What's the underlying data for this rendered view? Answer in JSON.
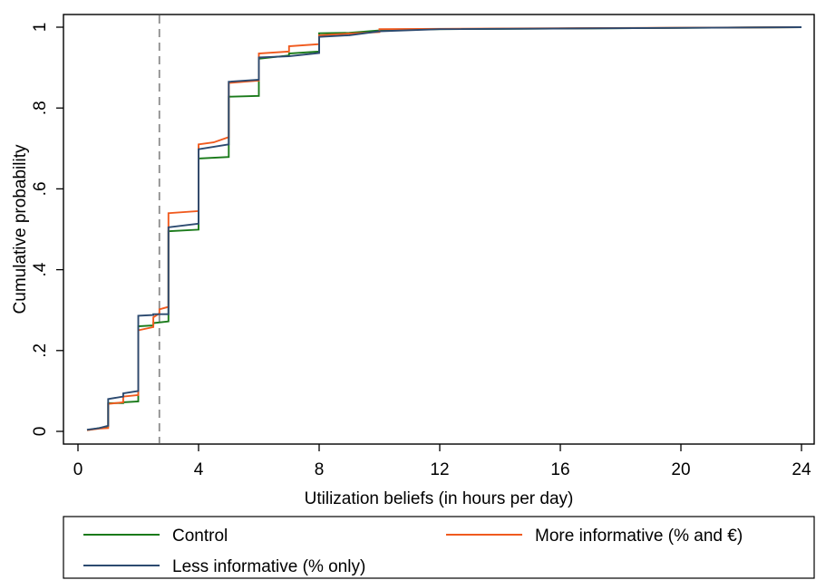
{
  "chart_data": {
    "type": "line",
    "step": true,
    "xlabel": "Utilization beliefs (in hours per day)",
    "ylabel": "Cumulative probability",
    "xlim": [
      0,
      24
    ],
    "ylim": [
      0,
      1
    ],
    "xticks": [
      0,
      4,
      8,
      12,
      16,
      20,
      24
    ],
    "yticks": [
      0,
      0.2,
      0.4,
      0.6,
      0.8,
      1
    ],
    "xtick_labels": [
      "0",
      "4",
      "8",
      "12",
      "16",
      "20",
      "24"
    ],
    "ytick_labels": [
      "0",
      ".2",
      ".4",
      ".6",
      ".8",
      "1"
    ],
    "reference_line": {
      "x": 2.7,
      "style": "dashed",
      "color": "#8c8c8c"
    },
    "grid": false,
    "legend_position": "bottom",
    "series": [
      {
        "name": "Control",
        "color": "#1a7a1a",
        "points": [
          [
            0.3,
            0.003
          ],
          [
            0.7,
            0.008
          ],
          [
            1.0,
            0.012
          ],
          [
            1.0,
            0.07
          ],
          [
            1.5,
            0.07
          ],
          [
            1.5,
            0.072
          ],
          [
            2.0,
            0.074
          ],
          [
            2.0,
            0.26
          ],
          [
            2.5,
            0.262
          ],
          [
            2.5,
            0.268
          ],
          [
            3.0,
            0.272
          ],
          [
            3.0,
            0.495
          ],
          [
            4.0,
            0.499
          ],
          [
            4.0,
            0.675
          ],
          [
            5.0,
            0.679
          ],
          [
            5.0,
            0.828
          ],
          [
            6.0,
            0.83
          ],
          [
            6.0,
            0.922
          ],
          [
            7.0,
            0.93
          ],
          [
            7.0,
            0.935
          ],
          [
            8.0,
            0.94
          ],
          [
            8.0,
            0.985
          ],
          [
            9.0,
            0.986
          ],
          [
            10.0,
            0.992
          ],
          [
            11.0,
            0.994
          ],
          [
            12.0,
            0.995
          ],
          [
            24.0,
            1.0
          ]
        ]
      },
      {
        "name": "More informative (% and €)",
        "color": "#f05a1e",
        "points": [
          [
            0.3,
            0.003
          ],
          [
            0.7,
            0.007
          ],
          [
            1.0,
            0.008
          ],
          [
            1.0,
            0.068
          ],
          [
            1.5,
            0.072
          ],
          [
            1.5,
            0.086
          ],
          [
            2.0,
            0.09
          ],
          [
            2.0,
            0.25
          ],
          [
            2.5,
            0.258
          ],
          [
            2.5,
            0.282
          ],
          [
            2.7,
            0.292
          ],
          [
            2.7,
            0.302
          ],
          [
            3.0,
            0.308
          ],
          [
            3.0,
            0.54
          ],
          [
            4.0,
            0.545
          ],
          [
            4.0,
            0.71
          ],
          [
            4.5,
            0.715
          ],
          [
            5.0,
            0.728
          ],
          [
            5.0,
            0.862
          ],
          [
            6.0,
            0.868
          ],
          [
            6.0,
            0.935
          ],
          [
            7.0,
            0.94
          ],
          [
            7.0,
            0.953
          ],
          [
            8.0,
            0.958
          ],
          [
            8.0,
            0.98
          ],
          [
            9.0,
            0.984
          ],
          [
            10.0,
            0.988
          ],
          [
            10.0,
            0.995
          ],
          [
            12.0,
            0.996
          ],
          [
            24.0,
            1.0
          ]
        ]
      },
      {
        "name": "Less informative (% only)",
        "color": "#2c4a70",
        "points": [
          [
            0.3,
            0.004
          ],
          [
            0.7,
            0.008
          ],
          [
            1.0,
            0.014
          ],
          [
            1.0,
            0.08
          ],
          [
            1.5,
            0.086
          ],
          [
            1.5,
            0.094
          ],
          [
            2.0,
            0.1
          ],
          [
            2.0,
            0.286
          ],
          [
            2.5,
            0.288
          ],
          [
            2.5,
            0.29
          ],
          [
            3.0,
            0.29
          ],
          [
            3.0,
            0.505
          ],
          [
            4.0,
            0.514
          ],
          [
            4.0,
            0.698
          ],
          [
            5.0,
            0.71
          ],
          [
            5.0,
            0.865
          ],
          [
            6.0,
            0.87
          ],
          [
            6.0,
            0.925
          ],
          [
            7.0,
            0.928
          ],
          [
            8.0,
            0.936
          ],
          [
            8.0,
            0.976
          ],
          [
            9.0,
            0.98
          ],
          [
            10.0,
            0.99
          ],
          [
            12.0,
            0.995
          ],
          [
            24.0,
            1.0
          ]
        ]
      }
    ]
  }
}
